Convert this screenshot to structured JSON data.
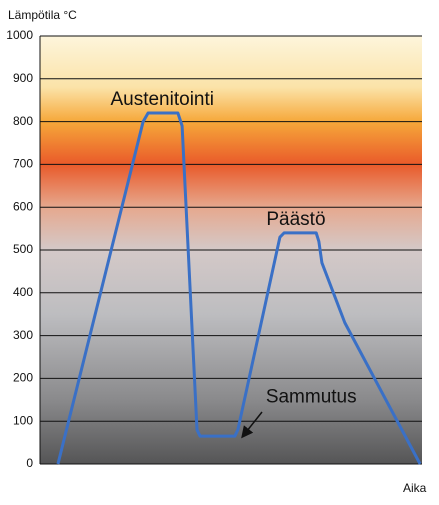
{
  "chart_data": {
    "type": "line",
    "y_label": "Lämpötila °C",
    "x_label": "Aika",
    "x": [
      4.7,
      27,
      28.3,
      36.1,
      37.2,
      41.1,
      41.9,
      51,
      51.8,
      62.8,
      63.9,
      72.3,
      73,
      73.8,
      79.8,
      99.5
    ],
    "values": [
      0,
      800,
      820,
      820,
      790,
      80,
      65,
      65,
      80,
      530,
      540,
      540,
      520,
      470,
      330,
      0
    ],
    "color": "#3a70c6",
    "xlim": [
      0,
      100
    ],
    "ylim": [
      0,
      1000
    ],
    "yticks": [
      0,
      100,
      200,
      300,
      400,
      500,
      600,
      700,
      800,
      900,
      1000
    ],
    "grid": true,
    "annotations": [
      {
        "text": "Austenitointi",
        "x": 32,
        "y": 850
      },
      {
        "text": "Päästö",
        "x": 67,
        "y": 570
      },
      {
        "text": "Sammutus",
        "x": 71,
        "y": 155
      }
    ]
  }
}
